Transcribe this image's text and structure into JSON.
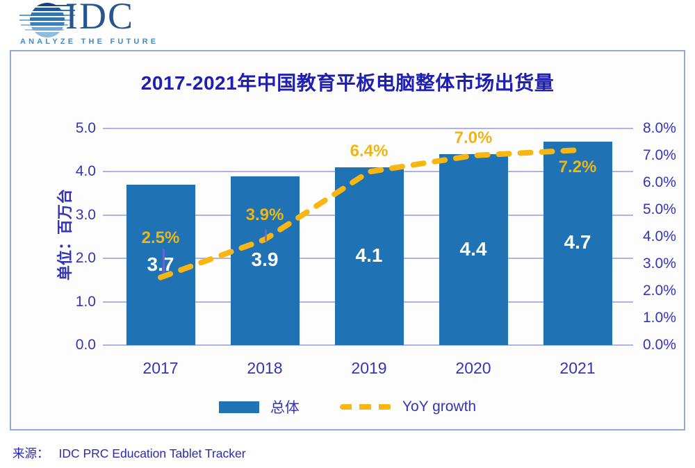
{
  "logo": {
    "name": "IDC",
    "tagline": "ANALYZE THE FUTURE"
  },
  "chart_data": {
    "type": "bar",
    "title": "2017-2021年中国教育平板电脑整体市场出货量",
    "categories": [
      "2017",
      "2018",
      "2019",
      "2020",
      "2021"
    ],
    "series": [
      {
        "name": "总体",
        "type": "bar",
        "axis": "left",
        "values": [
          3.7,
          3.9,
          4.1,
          4.4,
          4.7
        ],
        "labels": [
          "3.7",
          "3.9",
          "4.1",
          "4.4",
          "4.7"
        ],
        "color": "#1F73B4"
      },
      {
        "name": "YoY growth",
        "type": "line",
        "style": "dashed",
        "axis": "right",
        "values": [
          2.5,
          3.9,
          6.4,
          7.0,
          7.2
        ],
        "labels": [
          "2.5%",
          "3.9%",
          "6.4%",
          "7.0%",
          "7.2%"
        ],
        "label_dy": [
          -56,
          -34,
          -28,
          -24,
          26
        ],
        "color": "#F7B612"
      }
    ],
    "left_axis": {
      "label": "单位：百万台",
      "min": 0,
      "max": 5,
      "ticks": [
        "0.0",
        "1.0",
        "2.0",
        "3.0",
        "4.0",
        "5.0"
      ]
    },
    "right_axis": {
      "min": 0,
      "max": 8,
      "ticks": [
        "0.0%",
        "1.0%",
        "2.0%",
        "3.0%",
        "4.0%",
        "5.0%",
        "6.0%",
        "7.0%",
        "8.0%"
      ]
    },
    "legend": {
      "position": "bottom",
      "items": [
        "总体",
        "YoY growth"
      ]
    },
    "grid": true
  },
  "colors": {
    "bar": "#1F73B4",
    "line": "#F7B612",
    "grid": "#A3A3DE",
    "frame_border": "#8FAADC",
    "title_text": "#1E1EB0",
    "axis_text": "#3434B8",
    "bar_label_text": "#FFFFFF",
    "source_text": "#2A2AB2"
  },
  "source": {
    "label": "来源：",
    "text": "IDC PRC Education Tablet Tracker"
  }
}
